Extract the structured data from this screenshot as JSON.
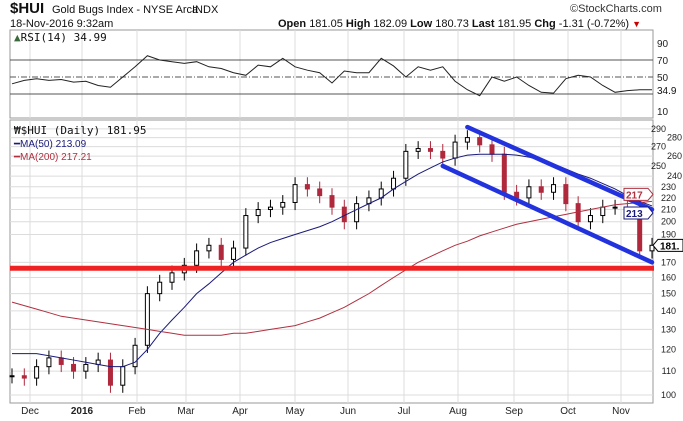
{
  "header": {
    "symbol": "$HUI",
    "name": "Gold Bugs Index - NYSE Arca",
    "exchange": "INDX",
    "brand": "©StockCharts.com",
    "datetime": "18-Nov-2016 9:32am",
    "open_label": "Open",
    "open": "181.05",
    "high_label": "High",
    "high": "182.09",
    "low_label": "Low",
    "low": "180.73",
    "last_label": "Last",
    "last": "181.95",
    "chg_label": "Chg",
    "chg": "-1.31 (-0.72%)",
    "chg_arrow": "▼"
  },
  "rsi_panel": {
    "label": "RSI(14) 34.99",
    "tag": "34.9"
  },
  "price_panel": {
    "label": "$HUI (Daily) 181.95",
    "ma50_label": "MA(50) 213.09",
    "ma200_label": "MA(200) 217.21",
    "tag_ma200": "217",
    "tag_ma50": "213",
    "tag_last": "181."
  },
  "colors": {
    "ma50": "#1a1a7a",
    "ma200": "#b03040",
    "up": "#000000",
    "down": "#b0283c",
    "channel": "#2233dd",
    "support": "#ee2222",
    "grid": "#dcdcdc"
  },
  "chart_data": [
    {
      "type": "line",
      "title": "RSI(14)",
      "ylim": [
        0,
        100
      ],
      "yticks": [
        "90",
        "70",
        "50",
        "10"
      ],
      "reference_lines": [
        70,
        50,
        30
      ],
      "x_weeks": 53,
      "values": [
        42,
        46,
        48,
        46,
        47,
        44,
        45,
        40,
        38,
        50,
        62,
        75,
        70,
        68,
        66,
        68,
        62,
        60,
        55,
        52,
        64,
        62,
        72,
        62,
        58,
        55,
        43,
        57,
        55,
        55,
        72,
        63,
        50,
        62,
        58,
        62,
        45,
        35,
        28,
        50,
        45,
        50,
        40,
        32,
        31,
        48,
        52,
        50,
        40,
        32,
        34,
        35,
        35
      ]
    },
    {
      "type": "line",
      "title": "$HUI (Daily)",
      "scale": "log",
      "ylim": [
        96,
        295
      ],
      "yticks": [
        "290",
        "280",
        "270",
        "260",
        "250",
        "240",
        "230",
        "220",
        "210",
        "200",
        "190",
        "170",
        "160",
        "150",
        "140",
        "130",
        "120",
        "110",
        "100"
      ],
      "xticks": [
        "Dec",
        "2016",
        "Feb",
        "Mar",
        "Apr",
        "May",
        "Jun",
        "Jul",
        "Aug",
        "Sep",
        "Oct",
        "Nov"
      ],
      "weekly_close": [
        108,
        107,
        112,
        116,
        113,
        110,
        113,
        115,
        104,
        112,
        122,
        150,
        157,
        163,
        168,
        178,
        182,
        172,
        180,
        205,
        210,
        212,
        216,
        232,
        228,
        222,
        212,
        200,
        215,
        220,
        228,
        238,
        265,
        268,
        265,
        258,
        275,
        280,
        272,
        262,
        225,
        220,
        230,
        225,
        232,
        215,
        200,
        205,
        212,
        212,
        208,
        178,
        182
      ],
      "ma50": [
        118,
        118,
        118,
        117,
        116,
        115,
        114,
        113,
        112,
        112,
        114,
        120,
        128,
        135,
        142,
        150,
        156,
        163,
        170,
        175,
        180,
        184,
        187,
        190,
        193,
        196,
        200,
        205,
        210,
        215,
        220,
        228,
        235,
        242,
        248,
        254,
        258,
        261,
        262,
        262,
        262,
        261,
        259,
        256,
        252,
        247,
        242,
        238,
        233,
        228,
        222,
        217,
        213
      ],
      "ma200": [
        145,
        143,
        141,
        139,
        137,
        136,
        135,
        134,
        133,
        132,
        131,
        130,
        129,
        128,
        127,
        127,
        127,
        127,
        128,
        128,
        129,
        130,
        131,
        132,
        134,
        136,
        139,
        142,
        146,
        150,
        155,
        160,
        165,
        170,
        174,
        178,
        182,
        185,
        189,
        192,
        195,
        198,
        200,
        202,
        204,
        206,
        208,
        210,
        212,
        214,
        215,
        216,
        217
      ],
      "support_level": 166,
      "channel_upper": [
        [
          37,
          292
        ],
        [
          52,
          210
        ]
      ],
      "channel_lower": [
        [
          35,
          250
        ],
        [
          52,
          170
        ]
      ]
    }
  ]
}
